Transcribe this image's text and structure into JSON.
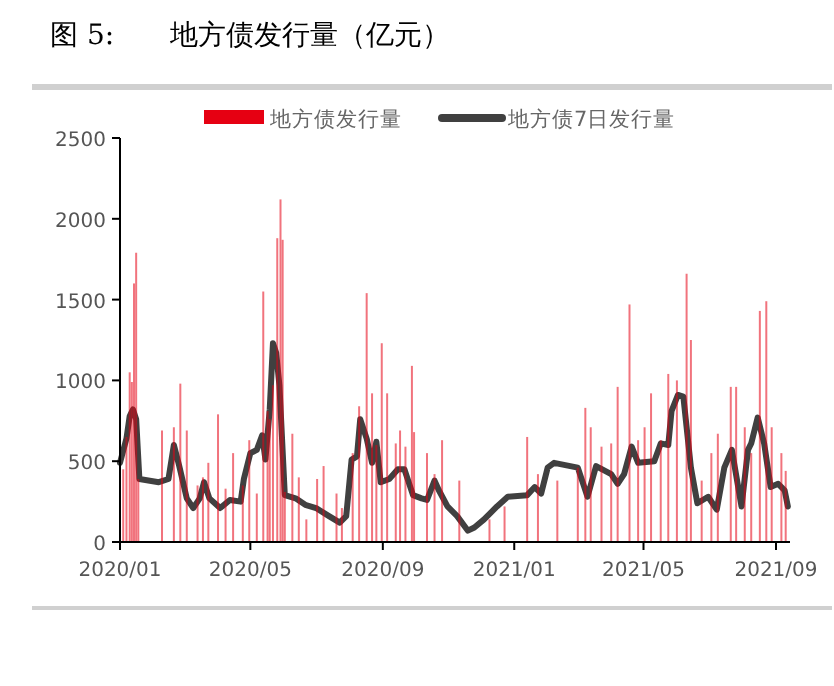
{
  "chart_data": {
    "type": "bar",
    "title": "图 5:　　地方债发行量（亿元）",
    "xlim": [
      "2020-01-01",
      "2021-09-14"
    ],
    "ylim": [
      0,
      2500
    ],
    "yticks": [
      0,
      500,
      1000,
      1500,
      2000,
      2500
    ],
    "xticks": [
      {
        "value": "2020-01-01",
        "label": "2020/01"
      },
      {
        "value": "2020-05-01",
        "label": "2020/05"
      },
      {
        "value": "2020-09-01",
        "label": "2020/09"
      },
      {
        "value": "2021-01-01",
        "label": "2021/01"
      },
      {
        "value": "2021-05-01",
        "label": "2021/05"
      },
      {
        "value": "2021-09-01",
        "label": "2021/09"
      }
    ],
    "legend": "top",
    "grid": false,
    "series": [
      {
        "name": "地方债发行量",
        "color": "#e60012",
        "x": [
          "2020-01-04",
          "2020-01-07",
          "2020-01-10",
          "2020-01-12",
          "2020-01-14",
          "2020-01-16",
          "2020-01-18",
          "2020-02-09",
          "2020-02-20",
          "2020-02-26",
          "2020-03-03",
          "2020-03-13",
          "2020-03-18",
          "2020-03-23",
          "2020-04-01",
          "2020-04-08",
          "2020-04-15",
          "2020-04-24",
          "2020-04-30",
          "2020-05-07",
          "2020-05-13",
          "2020-05-17",
          "2020-05-19",
          "2020-05-22",
          "2020-05-26",
          "2020-05-29",
          "2020-05-31",
          "2020-06-02",
          "2020-06-09",
          "2020-06-15",
          "2020-06-22",
          "2020-07-02",
          "2020-07-08",
          "2020-07-20",
          "2020-07-25",
          "2020-08-04",
          "2020-08-10",
          "2020-08-17",
          "2020-08-22",
          "2020-08-26",
          "2020-08-31",
          "2020-09-05",
          "2020-09-13",
          "2020-09-17",
          "2020-09-22",
          "2020-09-28",
          "2020-09-30",
          "2020-10-12",
          "2020-10-19",
          "2020-10-26",
          "2020-11-11",
          "2020-12-09",
          "2020-12-23",
          "2021-01-13",
          "2021-01-23",
          "2021-02-10",
          "2021-03-01",
          "2021-03-08",
          "2021-03-13",
          "2021-03-23",
          "2021-04-01",
          "2021-04-07",
          "2021-04-18",
          "2021-04-26",
          "2021-05-02",
          "2021-05-08",
          "2021-05-17",
          "2021-05-24",
          "2021-06-01",
          "2021-06-10",
          "2021-06-14",
          "2021-06-24",
          "2021-07-03",
          "2021-07-09",
          "2021-07-21",
          "2021-07-26",
          "2021-08-03",
          "2021-08-09",
          "2021-08-17",
          "2021-08-23",
          "2021-08-28",
          "2021-09-06",
          "2021-09-10"
        ],
        "values": [
          450,
          650,
          1050,
          990,
          1600,
          1790,
          390,
          690,
          710,
          980,
          690,
          350,
          400,
          490,
          790,
          330,
          550,
          350,
          630,
          300,
          1550,
          810,
          760,
          970,
          1880,
          2120,
          1870,
          310,
          670,
          400,
          140,
          390,
          470,
          300,
          210,
          550,
          840,
          1540,
          920,
          600,
          1230,
          920,
          610,
          690,
          590,
          1090,
          680,
          550,
          420,
          630,
          380,
          140,
          220,
          650,
          420,
          380,
          460,
          830,
          710,
          590,
          610,
          960,
          1470,
          630,
          710,
          920,
          630,
          1040,
          1000,
          1660,
          1250,
          380,
          550,
          670,
          960,
          960,
          710,
          550,
          1430,
          1490,
          710,
          550,
          440
        ]
      },
      {
        "name": "地方债7日发行量",
        "type": "line",
        "color": "#404040",
        "x": [
          "2020-01-01",
          "2020-01-07",
          "2020-01-10",
          "2020-01-13",
          "2020-01-16",
          "2020-01-19",
          "2020-02-06",
          "2020-02-15",
          "2020-02-20",
          "2020-02-25",
          "2020-03-03",
          "2020-03-09",
          "2020-03-15",
          "2020-03-19",
          "2020-03-24",
          "2020-04-03",
          "2020-04-12",
          "2020-04-22",
          "2020-04-25",
          "2020-05-01",
          "2020-05-07",
          "2020-05-12",
          "2020-05-15",
          "2020-05-19",
          "2020-05-22",
          "2020-05-25",
          "2020-05-28",
          "2020-06-02",
          "2020-06-12",
          "2020-06-21",
          "2020-07-01",
          "2020-07-13",
          "2020-07-23",
          "2020-07-29",
          "2020-08-03",
          "2020-08-08",
          "2020-08-11",
          "2020-08-17",
          "2020-08-22",
          "2020-08-26",
          "2020-08-30",
          "2020-09-07",
          "2020-09-15",
          "2020-09-21",
          "2020-09-29",
          "2020-10-07",
          "2020-10-12",
          "2020-10-19",
          "2020-10-23",
          "2020-10-31",
          "2020-11-09",
          "2020-11-19",
          "2020-11-25",
          "2020-12-04",
          "2020-12-16",
          "2020-12-26",
          "2021-01-13",
          "2021-01-20",
          "2021-01-26",
          "2021-02-01",
          "2021-02-07",
          "2021-03-01",
          "2021-03-10",
          "2021-03-18",
          "2021-04-01",
          "2021-04-07",
          "2021-04-13",
          "2021-04-20",
          "2021-04-26",
          "2021-05-11",
          "2021-05-17",
          "2021-05-24",
          "2021-05-27",
          "2021-06-02",
          "2021-06-07",
          "2021-06-14",
          "2021-06-20",
          "2021-06-30",
          "2021-07-08",
          "2021-07-15",
          "2021-07-22",
          "2021-07-31",
          "2021-08-06",
          "2021-08-09",
          "2021-08-15",
          "2021-08-21",
          "2021-08-27",
          "2021-09-03",
          "2021-09-09",
          "2021-09-12"
        ],
        "values": [
          490,
          640,
          780,
          820,
          760,
          390,
          370,
          390,
          600,
          470,
          270,
          210,
          270,
          370,
          270,
          210,
          260,
          250,
          390,
          550,
          570,
          660,
          510,
          820,
          1230,
          1170,
          970,
          290,
          270,
          230,
          210,
          160,
          120,
          160,
          510,
          530,
          760,
          640,
          490,
          620,
          370,
          390,
          450,
          450,
          290,
          270,
          260,
          380,
          320,
          220,
          160,
          70,
          90,
          140,
          220,
          280,
          290,
          340,
          300,
          460,
          490,
          460,
          280,
          470,
          420,
          360,
          420,
          590,
          490,
          500,
          610,
          600,
          810,
          910,
          900,
          460,
          240,
          280,
          200,
          460,
          570,
          220,
          570,
          610,
          770,
          610,
          340,
          360,
          320,
          220
        ]
      }
    ]
  }
}
